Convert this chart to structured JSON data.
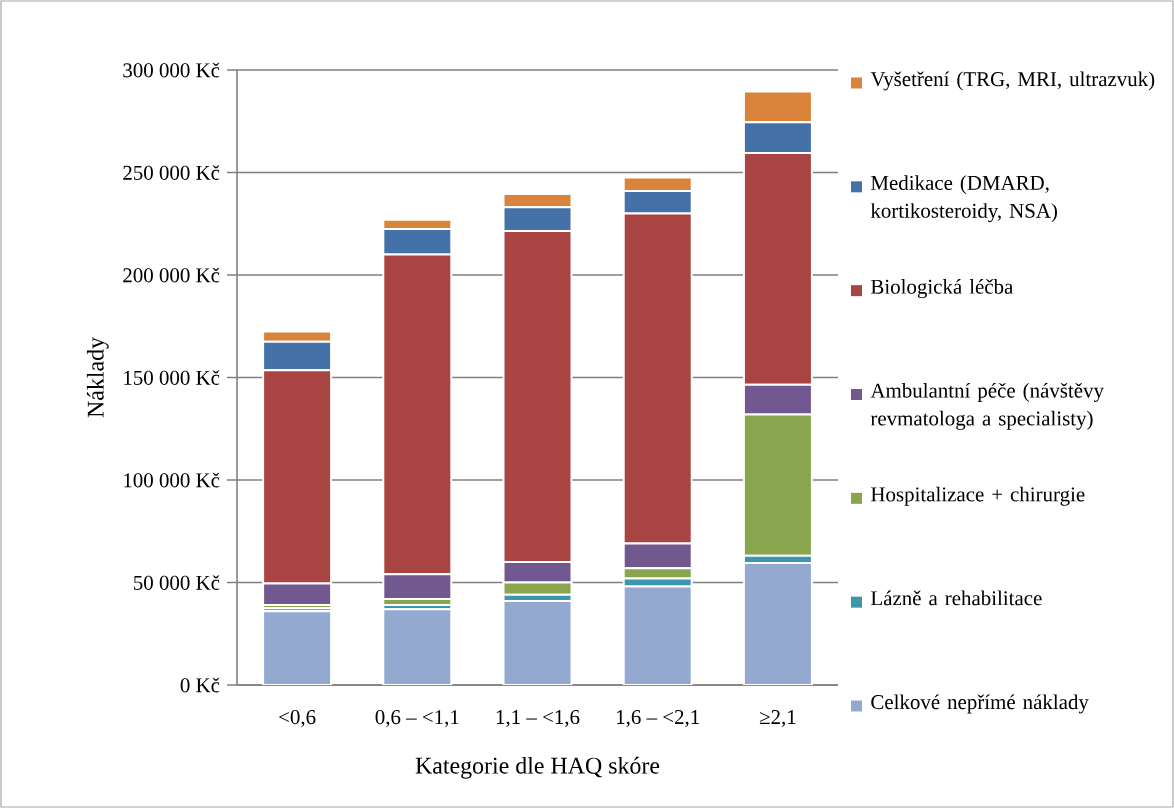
{
  "chart_data": {
    "type": "bar",
    "stacked": true,
    "xlabel": "Kategorie dle HAQ skóre",
    "ylabel": "Náklady",
    "categories": [
      "<0,6",
      "0,6 – <1,1",
      "1,1 – <1,6",
      "1,6 – <2,1",
      "≥2,1"
    ],
    "series": [
      {
        "name": "Celkové nepřímé náklady",
        "color": "#93a9cf",
        "values": [
          36000,
          37000,
          41000,
          48000,
          59500
        ]
      },
      {
        "name": "Lázně a rehabilitace",
        "color": "#3e96ae",
        "values": [
          1500,
          2000,
          3000,
          4000,
          3500
        ]
      },
      {
        "name": "Hospitalizace + chirurgie",
        "color": "#89a54e",
        "values": [
          1500,
          3000,
          6000,
          5000,
          69000
        ]
      },
      {
        "name": "Ambulantní péče (návštěvy revmatologa a specialisty)",
        "color": "#71588f",
        "values": [
          10500,
          12000,
          10000,
          12000,
          14500
        ]
      },
      {
        "name": "Biologická léčba",
        "color": "#a84442",
        "values": [
          104000,
          156000,
          161500,
          161000,
          113000
        ]
      },
      {
        "name": "Medikace (DMARD, kortikosteroidy, NSA)",
        "color": "#4472a8",
        "values": [
          14000,
          12500,
          11500,
          11000,
          15000
        ]
      },
      {
        "name": "Vyšetření (TRG, MRI, ultrazvuk)",
        "color": "#d9833b",
        "values": [
          5000,
          4500,
          6500,
          6500,
          15000
        ]
      }
    ],
    "ylim": [
      0,
      300000
    ],
    "yticks": [
      {
        "value": 0,
        "label": "0 Kč"
      },
      {
        "value": 50000,
        "label": "50 000 Kč"
      },
      {
        "value": 100000,
        "label": "100 000 Kč"
      },
      {
        "value": 150000,
        "label": "150 000 Kč"
      },
      {
        "value": 200000,
        "label": "200 000 Kč"
      },
      {
        "value": 250000,
        "label": "250 000 Kč"
      },
      {
        "value": 300000,
        "label": "300 000 Kč"
      }
    ],
    "grid": "y",
    "legend": "right"
  }
}
